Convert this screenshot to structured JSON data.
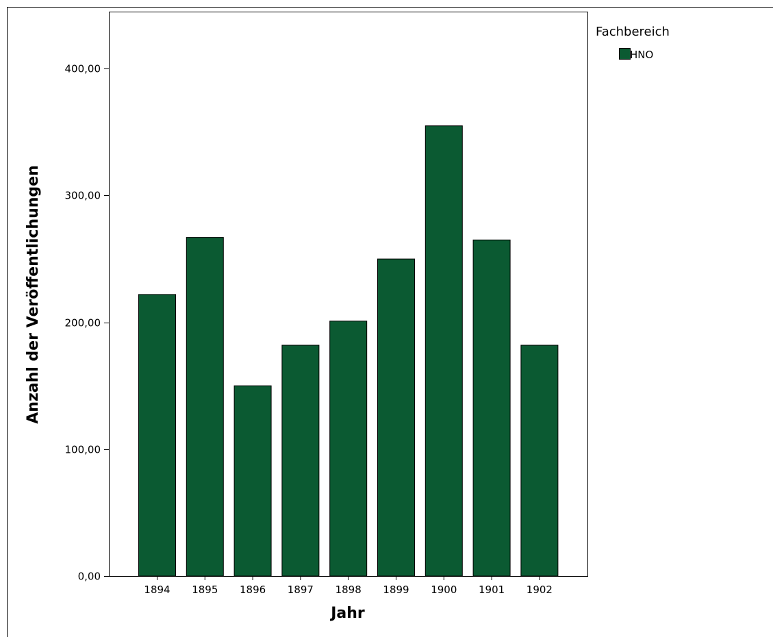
{
  "chart_data": {
    "type": "bar",
    "xlabel": "Jahr",
    "ylabel": "Anzahl der Veröffentlichungen",
    "categories": [
      "1894",
      "1895",
      "1896",
      "1897",
      "1898",
      "1899",
      "1900",
      "1901",
      "1902"
    ],
    "series": [
      {
        "name": "HNO",
        "values": [
          222,
          267,
          150,
          182,
          201,
          250,
          355,
          265,
          182
        ],
        "color": "#0b5a32"
      }
    ],
    "ylim": [
      0,
      445
    ],
    "yticks": [
      0,
      100,
      200,
      300,
      400
    ],
    "ytick_labels": [
      "0,00",
      "100,00",
      "200,00",
      "300,00",
      "400,00"
    ],
    "grid": false,
    "legend": {
      "title": "Fachbereich",
      "position": "top-right, outside plot"
    }
  }
}
